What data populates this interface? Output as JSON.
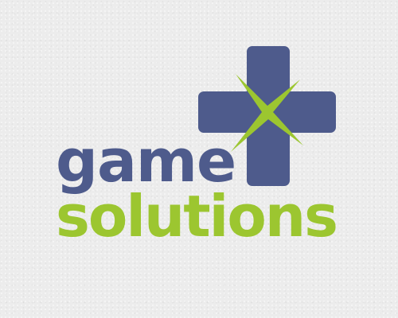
{
  "logo": {
    "word_top": "game",
    "word_bottom": "solutions",
    "icon": "dpad-cross-x-icon"
  },
  "colors": {
    "background": "#ececec",
    "blue": "#4e5b8c",
    "green": "#9cc630"
  }
}
